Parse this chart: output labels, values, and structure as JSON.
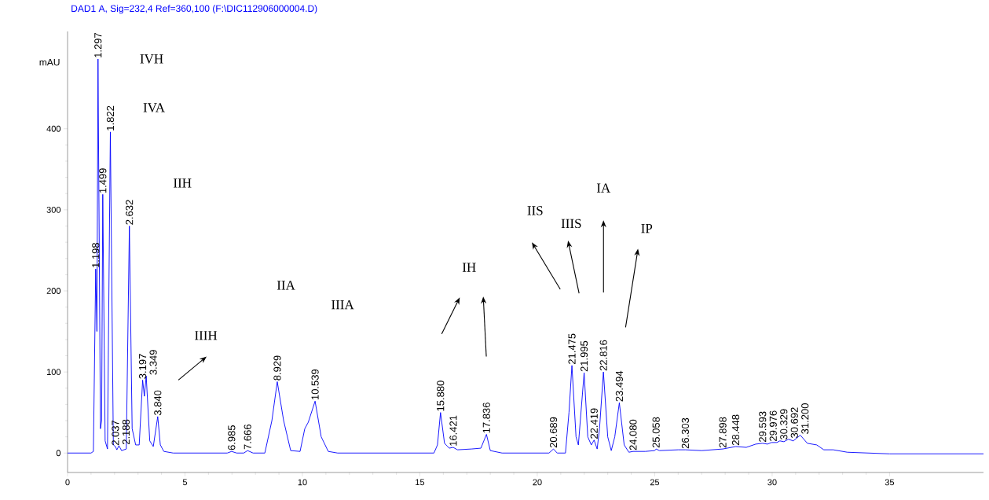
{
  "chart_data": {
    "type": "line",
    "title": "DAD1 A, Sig=232,4 Ref=360,100 (F:\\DIC112906000004.D)",
    "ylabel": "mAU",
    "xlim": [
      0,
      39
    ],
    "ylim": [
      -24,
      520
    ],
    "xticks": [
      0,
      5,
      10,
      15,
      20,
      25,
      30,
      35
    ],
    "yticks": [
      0,
      100,
      200,
      300,
      400
    ],
    "grid": false,
    "marker": "none",
    "line_style": "solid",
    "x": [
      0,
      1.0,
      1.1,
      1.198,
      1.25,
      1.297,
      1.4,
      1.45,
      1.499,
      1.6,
      1.7,
      1.822,
      1.95,
      2.037,
      2.1,
      2.188,
      2.3,
      2.5,
      2.632,
      2.75,
      2.9,
      3.05,
      3.197,
      3.27,
      3.349,
      3.5,
      3.65,
      3.84,
      3.95,
      4.1,
      4.5,
      6.8,
      6.985,
      7.2,
      7.5,
      7.666,
      7.9,
      8.4,
      8.7,
      8.929,
      9.2,
      9.5,
      9.9,
      10.1,
      10.25,
      10.539,
      10.8,
      11.1,
      11.5,
      15.6,
      15.75,
      15.88,
      16.05,
      16.25,
      16.421,
      16.6,
      17.2,
      17.6,
      17.836,
      18.0,
      18.5,
      20.5,
      20.689,
      20.85,
      21.2,
      21.35,
      21.475,
      21.65,
      21.75,
      21.995,
      22.15,
      22.3,
      22.419,
      22.55,
      22.65,
      22.816,
      23.0,
      23.15,
      23.3,
      23.494,
      23.7,
      23.9,
      24.08,
      24.6,
      25.0,
      25.058,
      25.2,
      26.0,
      26.303,
      27.0,
      27.898,
      28.448,
      28.9,
      29.3,
      29.593,
      29.8,
      29.976,
      30.2,
      30.329,
      30.5,
      30.692,
      30.9,
      31.2,
      31.5,
      31.9,
      32.2,
      32.6,
      33.2,
      35,
      39
    ],
    "series": [
      {
        "color": "#0000ff",
        "values": [
          0,
          0,
          2,
          227,
          150,
          486,
          30,
          40,
          319,
          15,
          5,
          396,
          10,
          8,
          4,
          9,
          3,
          5,
          280,
          30,
          10,
          10,
          90,
          70,
          95,
          15,
          8,
          45,
          10,
          2,
          0,
          0,
          2,
          0,
          0,
          3,
          0,
          0,
          40,
          88,
          40,
          3,
          2,
          30,
          38,
          64,
          20,
          2,
          0,
          0,
          10,
          50,
          12,
          6,
          7,
          4,
          5,
          6,
          23,
          3,
          0,
          0,
          5,
          0,
          0,
          50,
          108,
          20,
          10,
          99,
          20,
          10,
          16,
          5,
          30,
          100,
          20,
          3,
          20,
          62,
          10,
          1,
          2,
          2,
          3,
          5,
          3,
          4,
          4,
          3,
          5,
          8,
          7,
          11,
          12,
          11,
          13,
          13,
          15,
          14,
          17,
          15,
          22,
          12,
          10,
          4,
          4,
          1,
          -1,
          -1
        ]
      }
    ],
    "annotations": [
      "IVH",
      "IVA",
      "IIH",
      "IIIH",
      "IIA",
      "IIIA",
      "IH",
      "IIS",
      "IIIS",
      "IA",
      "IP",
      {
        "text": "1.198",
        "x": 1.198,
        "y": 227
      },
      {
        "text": "1.297",
        "x": 1.297,
        "y": 486
      },
      {
        "text": "1.499",
        "x": 1.499,
        "y": 319
      },
      {
        "text": "1.822",
        "x": 1.822,
        "y": 396
      },
      {
        "text": "2.037",
        "x": 2.037,
        "y": 8
      },
      {
        "text": "2.188",
        "x": 2.188,
        "y": 9
      },
      {
        "text": "2.632",
        "x": 2.632,
        "y": 280
      },
      {
        "text": "3.197",
        "x": 3.197,
        "y": 90
      },
      {
        "text": "3.349",
        "x": 3.349,
        "y": 95
      },
      {
        "text": "3.840",
        "x": 3.84,
        "y": 45
      },
      {
        "text": "6.985",
        "x": 6.985,
        "y": 2
      },
      {
        "text": "7.666",
        "x": 7.666,
        "y": 3
      },
      {
        "text": "8.929",
        "x": 8.929,
        "y": 88
      },
      {
        "text": "10.539",
        "x": 10.539,
        "y": 64
      },
      {
        "text": "15.880",
        "x": 15.88,
        "y": 50
      },
      {
        "text": "16.421",
        "x": 16.421,
        "y": 7
      },
      {
        "text": "17.836",
        "x": 17.836,
        "y": 23
      },
      {
        "text": "20.689",
        "x": 20.689,
        "y": 5
      },
      {
        "text": "21.475",
        "x": 21.475,
        "y": 108
      },
      {
        "text": "21.995",
        "x": 21.995,
        "y": 99
      },
      {
        "text": "22.419",
        "x": 22.419,
        "y": 16
      },
      {
        "text": "22.816",
        "x": 22.816,
        "y": 100
      },
      {
        "text": "23.494",
        "x": 23.494,
        "y": 62
      },
      {
        "text": "24.080",
        "x": 24.08,
        "y": 2
      },
      {
        "text": "25.058",
        "x": 25.058,
        "y": 5
      },
      {
        "text": "26.303",
        "x": 26.303,
        "y": 4
      },
      {
        "text": "27.898",
        "x": 27.898,
        "y": 5
      },
      {
        "text": "28.448",
        "x": 28.448,
        "y": 8
      },
      {
        "text": "29.593",
        "x": 29.593,
        "y": 12
      },
      {
        "text": "29.976",
        "x": 29.976,
        "y": 13
      },
      {
        "text": "30.329",
        "x": 30.329,
        "y": 15
      },
      {
        "text": "30.692",
        "x": 30.692,
        "y": 17
      },
      {
        "text": "31.200",
        "x": 31.2,
        "y": 22
      }
    ]
  }
}
